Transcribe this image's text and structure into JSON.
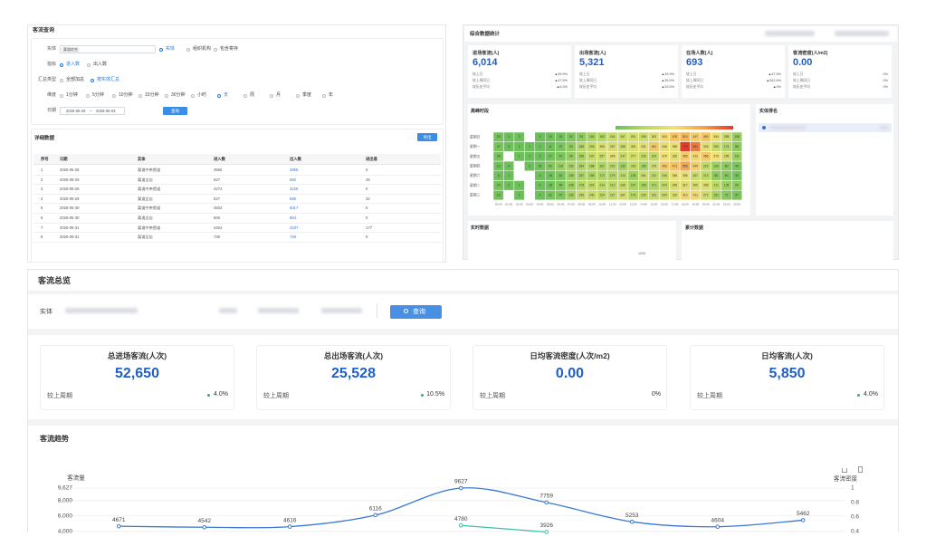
{
  "query_panel": {
    "title": "客流查询",
    "entity_label": "实体",
    "entity_tag": "渠道综合",
    "entity_options": [
      "实体",
      "组织机构",
      "包含寄存"
    ],
    "entity_selected": 0,
    "metric_label": "指标",
    "metric_options": [
      "进入数",
      "出入数"
    ],
    "metric_selected": 0,
    "summary_label": "汇总类型",
    "summary_options": [
      "全部加总",
      "按实体汇总"
    ],
    "summary_selected": 1,
    "dimension_label": "维度",
    "dimension_options": [
      "1分钟",
      "5分钟",
      "10分钟",
      "15分钟",
      "30分钟",
      "小时",
      "天",
      "周",
      "月",
      "季度",
      "年"
    ],
    "dimension_selected": 6,
    "date_label": "日期",
    "date_start": "2026-05-28",
    "date_sep": "~",
    "date_end": "2026-06-03",
    "query_button": "查询"
  },
  "detail_table": {
    "title": "详细数据",
    "export_button": "导出",
    "columns": [
      "序号",
      "日期",
      "实体",
      "进入数",
      "出入数",
      "进出差"
    ],
    "rows": [
      [
        "1",
        "2026-05-28",
        "渠道中央馆道",
        "3565",
        "2955",
        "0"
      ],
      [
        "2",
        "2026-05-29",
        "渠道全店",
        "627",
        "582",
        "45"
      ],
      [
        "3",
        "2026-05-29",
        "渠道中央馆道",
        "4274",
        "4225",
        "0"
      ],
      [
        "4",
        "2026-05-29",
        "渠道全店",
        "627",
        "595",
        "32"
      ],
      [
        "5",
        "2026-05-30",
        "渠道中央馆道",
        "4503",
        "5017",
        "0"
      ],
      [
        "6",
        "2026-05-30",
        "渠道全店",
        "606",
        "864",
        "0"
      ],
      [
        "7",
        "2026-05-31",
        "渠道中央馆道",
        "4404",
        "4337",
        "177"
      ],
      [
        "8",
        "2026-05-31",
        "渠道全店",
        "739",
        "746",
        "0"
      ]
    ]
  },
  "stats_panel": {
    "title": "综合数据统计",
    "cards": [
      {
        "label": "进场客流(人)",
        "value": "6,014",
        "compare": [
          {
            "label": "较上日",
            "value": "▲39.9%"
          },
          {
            "label": "较上周同日",
            "value": "▲47.5%"
          },
          {
            "label": "较历史平均",
            "value": "▲6.3%"
          }
        ]
      },
      {
        "label": "出场客流(人)",
        "value": "5,321",
        "compare": [
          {
            "label": "较上日",
            "value": "▲39.9%"
          },
          {
            "label": "较上周同日",
            "value": "▲35.5%"
          },
          {
            "label": "较历史平均",
            "value": "▲33.5%"
          }
        ]
      },
      {
        "label": "在场人数(人)",
        "value": "693",
        "compare": [
          {
            "label": "较上日",
            "value": "▲47.5%"
          },
          {
            "label": "较上周同日",
            "value": "▲342.6%"
          },
          {
            "label": "较历史平均",
            "value": "▲0%"
          }
        ]
      },
      {
        "label": "客流密度(人/m2)",
        "value": "0.00",
        "compare": [
          {
            "label": "较上日",
            "value": "0%"
          },
          {
            "label": "较上周同日",
            "value": "0%"
          },
          {
            "label": "较历史平均",
            "value": "0%"
          }
        ]
      }
    ]
  },
  "heatmap": {
    "type": "heatmap",
    "title": "高峰时段",
    "rows": [
      "星期日",
      "星期一",
      "星期五",
      "星期四",
      "星期六",
      "星期二",
      "星期三"
    ],
    "x": [
      "00:00",
      "01:00",
      "02:00",
      "03:00",
      "04:00",
      "05:00",
      "06:00",
      "07:00",
      "08:00",
      "09:00",
      "10:00",
      "11:00",
      "12:00",
      "13:00",
      "14:00",
      "15:00",
      "16:00",
      "17:00",
      "18:00",
      "19:00",
      "20:00",
      "21:00",
      "22:00",
      "23:00"
    ],
    "values": [
      [
        20,
        1,
        3,
        null,
        3,
        10,
        12,
        52,
        93,
        154,
        183,
        244,
        267,
        281,
        255,
        302,
        404,
        478,
        514,
        447,
        463,
        354,
        255,
        108
      ],
      [
        37,
        5,
        1,
        1,
        1,
        8,
        37,
        94,
        188,
        226,
        305,
        297,
        268,
        303,
        331,
        461,
        348,
        358,
        770,
        651,
        325,
        250,
        174,
        88
      ],
      [
        28,
        null,
        1,
        1,
        3,
        17,
        41,
        99,
        158,
        237,
        257,
        346,
        247,
        277,
        236,
        224,
        379,
        330,
        450,
        412,
        458,
        379,
        295,
        131
      ],
      [
        13,
        4,
        null,
        2,
        15,
        60,
        115,
        152,
        164,
        188,
        167,
        202,
        132,
        216,
        155,
        275,
        453,
        471,
        556,
        444,
        216,
        129,
        80,
        40
      ],
      [
        8,
        1,
        null,
        null,
        4,
        18,
        42,
        136,
        157,
        165,
        172,
        179,
        214,
        125,
        261,
        211,
        246,
        356,
        356,
        267,
        213,
        85,
        60,
        30
      ],
      [
        24,
        2,
        1,
        null,
        4,
        18,
        49,
        128,
        178,
        224,
        214,
        213,
        236,
        157,
        158,
        171,
        224,
        299,
        317,
        300,
        308,
        211,
        125,
        90
      ],
      [
        19,
        null,
        2,
        null,
        4,
        31,
        47,
        142,
        235,
        240,
        224,
        227,
        287,
        179,
        229,
        231,
        254,
        319,
        412,
        411,
        271,
        151,
        72,
        37
      ]
    ],
    "vlim": [
      0,
      770
    ],
    "colors": [
      "#6cbf5b",
      "#b9d867",
      "#f1e07a",
      "#f3a14a",
      "#e5392b"
    ]
  },
  "ranking": {
    "title": "实体排名"
  },
  "realtime": {
    "title": "实时数据",
    "value": "1045"
  },
  "cumulative": {
    "title": "累计数据"
  },
  "overview": {
    "title": "客流总览",
    "entity_label": "实体",
    "query_button": "查询",
    "kpis": [
      {
        "label": "总进场客流(人次)",
        "value": "52,650",
        "compare_label": "较上周期",
        "change": "4.0%",
        "trend": "up"
      },
      {
        "label": "总出场客流(人次)",
        "value": "25,528",
        "compare_label": "较上周期",
        "change": "10.5%",
        "trend": "up"
      },
      {
        "label": "日均客流密度(人次/m2)",
        "value": "0.00",
        "compare_label": "较上周期",
        "change": "0%",
        "trend": "flat"
      },
      {
        "label": "日均客流(人次)",
        "value": "5,850",
        "compare_label": "较上周期",
        "change": "4.0%",
        "trend": "up"
      }
    ]
  },
  "trend_chart": {
    "type": "line",
    "title": "客流趋势",
    "y_axis_title": "客流量",
    "y2_axis_title": "客流密度",
    "ylim": [
      3700,
      9627
    ],
    "yticks": [
      {
        "value": 9627,
        "label": "9,627"
      },
      {
        "value": 8000,
        "label": "8,000"
      },
      {
        "value": 6000,
        "label": "6,000"
      },
      {
        "value": 4000,
        "label": "4,000"
      }
    ],
    "y2lim": [
      0.37,
      1
    ],
    "y2ticks": [
      1,
      0.8,
      0.6,
      0.4
    ],
    "grid": true,
    "series": [
      {
        "color": "#3a78d4",
        "values": [
          4671,
          4542,
          4616,
          6116,
          9627,
          7759,
          5253,
          4604,
          5462
        ]
      },
      {
        "color": "#3fbfa8",
        "values": [
          null,
          null,
          null,
          null,
          4780,
          3926,
          null,
          null,
          null
        ]
      }
    ]
  }
}
